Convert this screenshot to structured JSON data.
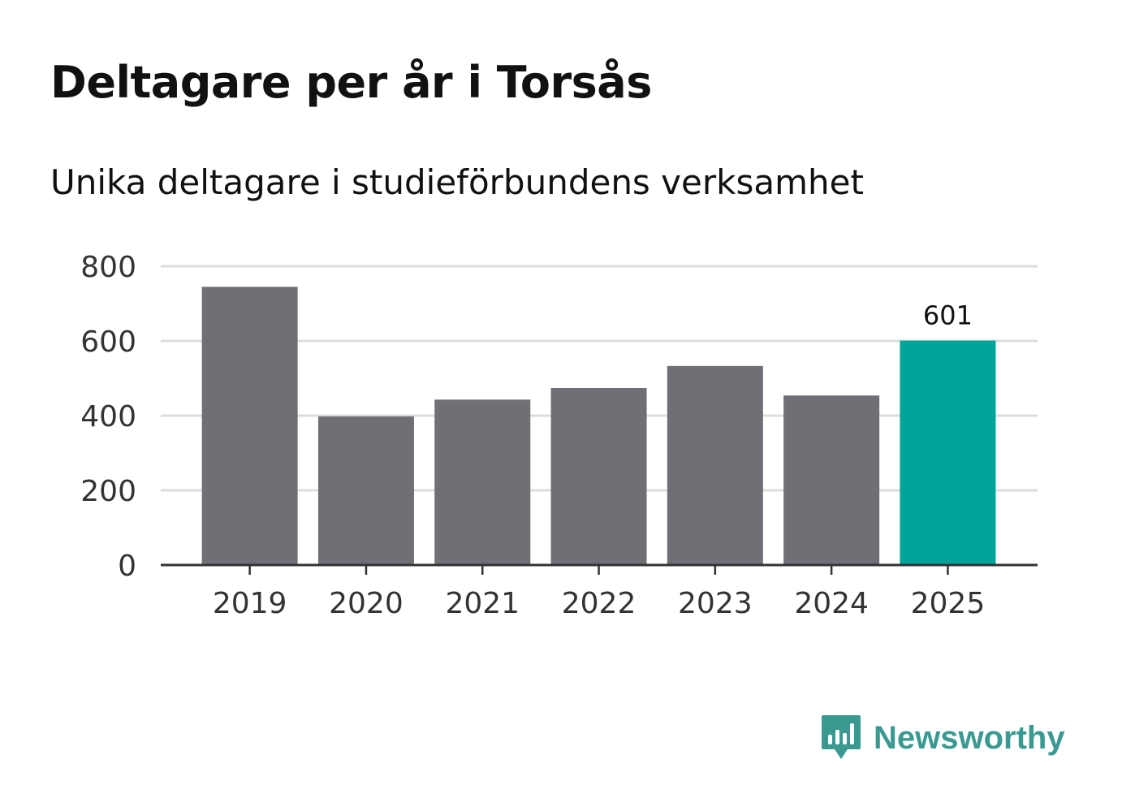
{
  "header": {
    "title": "Deltagare per år i Torsås",
    "subtitle": "Unika deltagare i studieförbundens verksamhet"
  },
  "brand": {
    "name": "Newsworthy",
    "color": "#3a9a92",
    "icon": "bar-chart-speech-bubble-icon"
  },
  "colors": {
    "bar": "#706f75",
    "highlight": "#00a49a",
    "grid": "#dddddd",
    "axis": "#333333",
    "tick_text": "#333333",
    "label_text": "#111111"
  },
  "chart_data": {
    "type": "bar",
    "title": "Deltagare per år i Torsås",
    "subtitle": "Unika deltagare i studieförbundens verksamhet",
    "xlabel": "",
    "ylabel": "",
    "categories": [
      "2019",
      "2020",
      "2021",
      "2022",
      "2023",
      "2024",
      "2025"
    ],
    "values": [
      745,
      398,
      443,
      474,
      533,
      454,
      601
    ],
    "highlight_index": 6,
    "data_labels": [
      {
        "index": 6,
        "text": "601"
      }
    ],
    "ylim": [
      0,
      800
    ],
    "yticks": [
      0,
      200,
      400,
      600,
      800
    ],
    "ytick_labels": [
      "0",
      "200",
      "400",
      "600",
      "800"
    ],
    "grid": true,
    "legend": "none"
  }
}
